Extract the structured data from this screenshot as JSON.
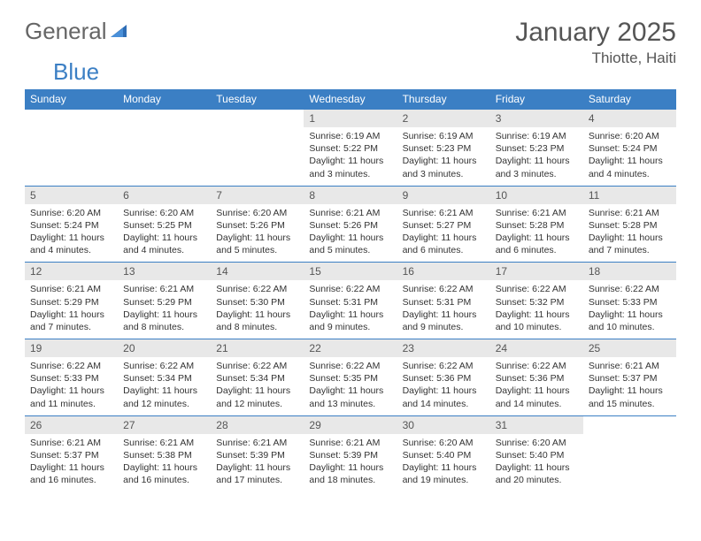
{
  "brand": {
    "part1": "General",
    "part2": "Blue"
  },
  "title": "January 2025",
  "location": "Thiotte, Haiti",
  "colors": {
    "header_bg": "#3b7fc4",
    "header_text": "#ffffff",
    "daynum_bg": "#e8e8e8",
    "rule": "#3b7fc4",
    "text": "#333333",
    "title_text": "#555555"
  },
  "day_headers": [
    "Sunday",
    "Monday",
    "Tuesday",
    "Wednesday",
    "Thursday",
    "Friday",
    "Saturday"
  ],
  "weeks": [
    [
      {
        "n": "",
        "sunrise": "",
        "sunset": "",
        "daylight": ""
      },
      {
        "n": "",
        "sunrise": "",
        "sunset": "",
        "daylight": ""
      },
      {
        "n": "",
        "sunrise": "",
        "sunset": "",
        "daylight": ""
      },
      {
        "n": "1",
        "sunrise": "Sunrise: 6:19 AM",
        "sunset": "Sunset: 5:22 PM",
        "daylight": "Daylight: 11 hours and 3 minutes."
      },
      {
        "n": "2",
        "sunrise": "Sunrise: 6:19 AM",
        "sunset": "Sunset: 5:23 PM",
        "daylight": "Daylight: 11 hours and 3 minutes."
      },
      {
        "n": "3",
        "sunrise": "Sunrise: 6:19 AM",
        "sunset": "Sunset: 5:23 PM",
        "daylight": "Daylight: 11 hours and 3 minutes."
      },
      {
        "n": "4",
        "sunrise": "Sunrise: 6:20 AM",
        "sunset": "Sunset: 5:24 PM",
        "daylight": "Daylight: 11 hours and 4 minutes."
      }
    ],
    [
      {
        "n": "5",
        "sunrise": "Sunrise: 6:20 AM",
        "sunset": "Sunset: 5:24 PM",
        "daylight": "Daylight: 11 hours and 4 minutes."
      },
      {
        "n": "6",
        "sunrise": "Sunrise: 6:20 AM",
        "sunset": "Sunset: 5:25 PM",
        "daylight": "Daylight: 11 hours and 4 minutes."
      },
      {
        "n": "7",
        "sunrise": "Sunrise: 6:20 AM",
        "sunset": "Sunset: 5:26 PM",
        "daylight": "Daylight: 11 hours and 5 minutes."
      },
      {
        "n": "8",
        "sunrise": "Sunrise: 6:21 AM",
        "sunset": "Sunset: 5:26 PM",
        "daylight": "Daylight: 11 hours and 5 minutes."
      },
      {
        "n": "9",
        "sunrise": "Sunrise: 6:21 AM",
        "sunset": "Sunset: 5:27 PM",
        "daylight": "Daylight: 11 hours and 6 minutes."
      },
      {
        "n": "10",
        "sunrise": "Sunrise: 6:21 AM",
        "sunset": "Sunset: 5:28 PM",
        "daylight": "Daylight: 11 hours and 6 minutes."
      },
      {
        "n": "11",
        "sunrise": "Sunrise: 6:21 AM",
        "sunset": "Sunset: 5:28 PM",
        "daylight": "Daylight: 11 hours and 7 minutes."
      }
    ],
    [
      {
        "n": "12",
        "sunrise": "Sunrise: 6:21 AM",
        "sunset": "Sunset: 5:29 PM",
        "daylight": "Daylight: 11 hours and 7 minutes."
      },
      {
        "n": "13",
        "sunrise": "Sunrise: 6:21 AM",
        "sunset": "Sunset: 5:29 PM",
        "daylight": "Daylight: 11 hours and 8 minutes."
      },
      {
        "n": "14",
        "sunrise": "Sunrise: 6:22 AM",
        "sunset": "Sunset: 5:30 PM",
        "daylight": "Daylight: 11 hours and 8 minutes."
      },
      {
        "n": "15",
        "sunrise": "Sunrise: 6:22 AM",
        "sunset": "Sunset: 5:31 PM",
        "daylight": "Daylight: 11 hours and 9 minutes."
      },
      {
        "n": "16",
        "sunrise": "Sunrise: 6:22 AM",
        "sunset": "Sunset: 5:31 PM",
        "daylight": "Daylight: 11 hours and 9 minutes."
      },
      {
        "n": "17",
        "sunrise": "Sunrise: 6:22 AM",
        "sunset": "Sunset: 5:32 PM",
        "daylight": "Daylight: 11 hours and 10 minutes."
      },
      {
        "n": "18",
        "sunrise": "Sunrise: 6:22 AM",
        "sunset": "Sunset: 5:33 PM",
        "daylight": "Daylight: 11 hours and 10 minutes."
      }
    ],
    [
      {
        "n": "19",
        "sunrise": "Sunrise: 6:22 AM",
        "sunset": "Sunset: 5:33 PM",
        "daylight": "Daylight: 11 hours and 11 minutes."
      },
      {
        "n": "20",
        "sunrise": "Sunrise: 6:22 AM",
        "sunset": "Sunset: 5:34 PM",
        "daylight": "Daylight: 11 hours and 12 minutes."
      },
      {
        "n": "21",
        "sunrise": "Sunrise: 6:22 AM",
        "sunset": "Sunset: 5:34 PM",
        "daylight": "Daylight: 11 hours and 12 minutes."
      },
      {
        "n": "22",
        "sunrise": "Sunrise: 6:22 AM",
        "sunset": "Sunset: 5:35 PM",
        "daylight": "Daylight: 11 hours and 13 minutes."
      },
      {
        "n": "23",
        "sunrise": "Sunrise: 6:22 AM",
        "sunset": "Sunset: 5:36 PM",
        "daylight": "Daylight: 11 hours and 14 minutes."
      },
      {
        "n": "24",
        "sunrise": "Sunrise: 6:22 AM",
        "sunset": "Sunset: 5:36 PM",
        "daylight": "Daylight: 11 hours and 14 minutes."
      },
      {
        "n": "25",
        "sunrise": "Sunrise: 6:21 AM",
        "sunset": "Sunset: 5:37 PM",
        "daylight": "Daylight: 11 hours and 15 minutes."
      }
    ],
    [
      {
        "n": "26",
        "sunrise": "Sunrise: 6:21 AM",
        "sunset": "Sunset: 5:37 PM",
        "daylight": "Daylight: 11 hours and 16 minutes."
      },
      {
        "n": "27",
        "sunrise": "Sunrise: 6:21 AM",
        "sunset": "Sunset: 5:38 PM",
        "daylight": "Daylight: 11 hours and 16 minutes."
      },
      {
        "n": "28",
        "sunrise": "Sunrise: 6:21 AM",
        "sunset": "Sunset: 5:39 PM",
        "daylight": "Daylight: 11 hours and 17 minutes."
      },
      {
        "n": "29",
        "sunrise": "Sunrise: 6:21 AM",
        "sunset": "Sunset: 5:39 PM",
        "daylight": "Daylight: 11 hours and 18 minutes."
      },
      {
        "n": "30",
        "sunrise": "Sunrise: 6:20 AM",
        "sunset": "Sunset: 5:40 PM",
        "daylight": "Daylight: 11 hours and 19 minutes."
      },
      {
        "n": "31",
        "sunrise": "Sunrise: 6:20 AM",
        "sunset": "Sunset: 5:40 PM",
        "daylight": "Daylight: 11 hours and 20 minutes."
      },
      {
        "n": "",
        "sunrise": "",
        "sunset": "",
        "daylight": ""
      }
    ]
  ]
}
